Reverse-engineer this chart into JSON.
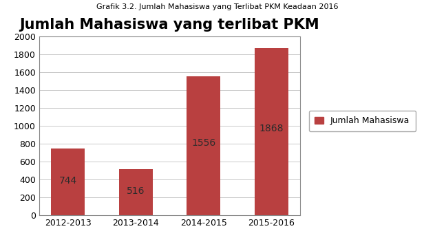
{
  "title": "Jumlah Mahasiswa yang terlibat PKM",
  "suptitle": "Grafik 3.2. Jumlah Mahasiswa yang Terlibat PKM Keadaan 2016",
  "categories": [
    "2012-2013",
    "2013-2014",
    "2014-2015",
    "2015-2016"
  ],
  "values": [
    744,
    516,
    1556,
    1868
  ],
  "bar_color": "#b94040",
  "ylim": [
    0,
    2000
  ],
  "yticks": [
    0,
    200,
    400,
    600,
    800,
    1000,
    1200,
    1400,
    1600,
    1800,
    2000
  ],
  "legend_label": "Jumlah Mahasiswa",
  "title_fontsize": 15,
  "tick_fontsize": 9,
  "value_fontsize": 10,
  "suptitle_fontsize": 8,
  "background_color": "#ffffff",
  "grid_color": "#c8c8c8",
  "value_label_color": "#2b2b2b",
  "frame_color": "#888888"
}
